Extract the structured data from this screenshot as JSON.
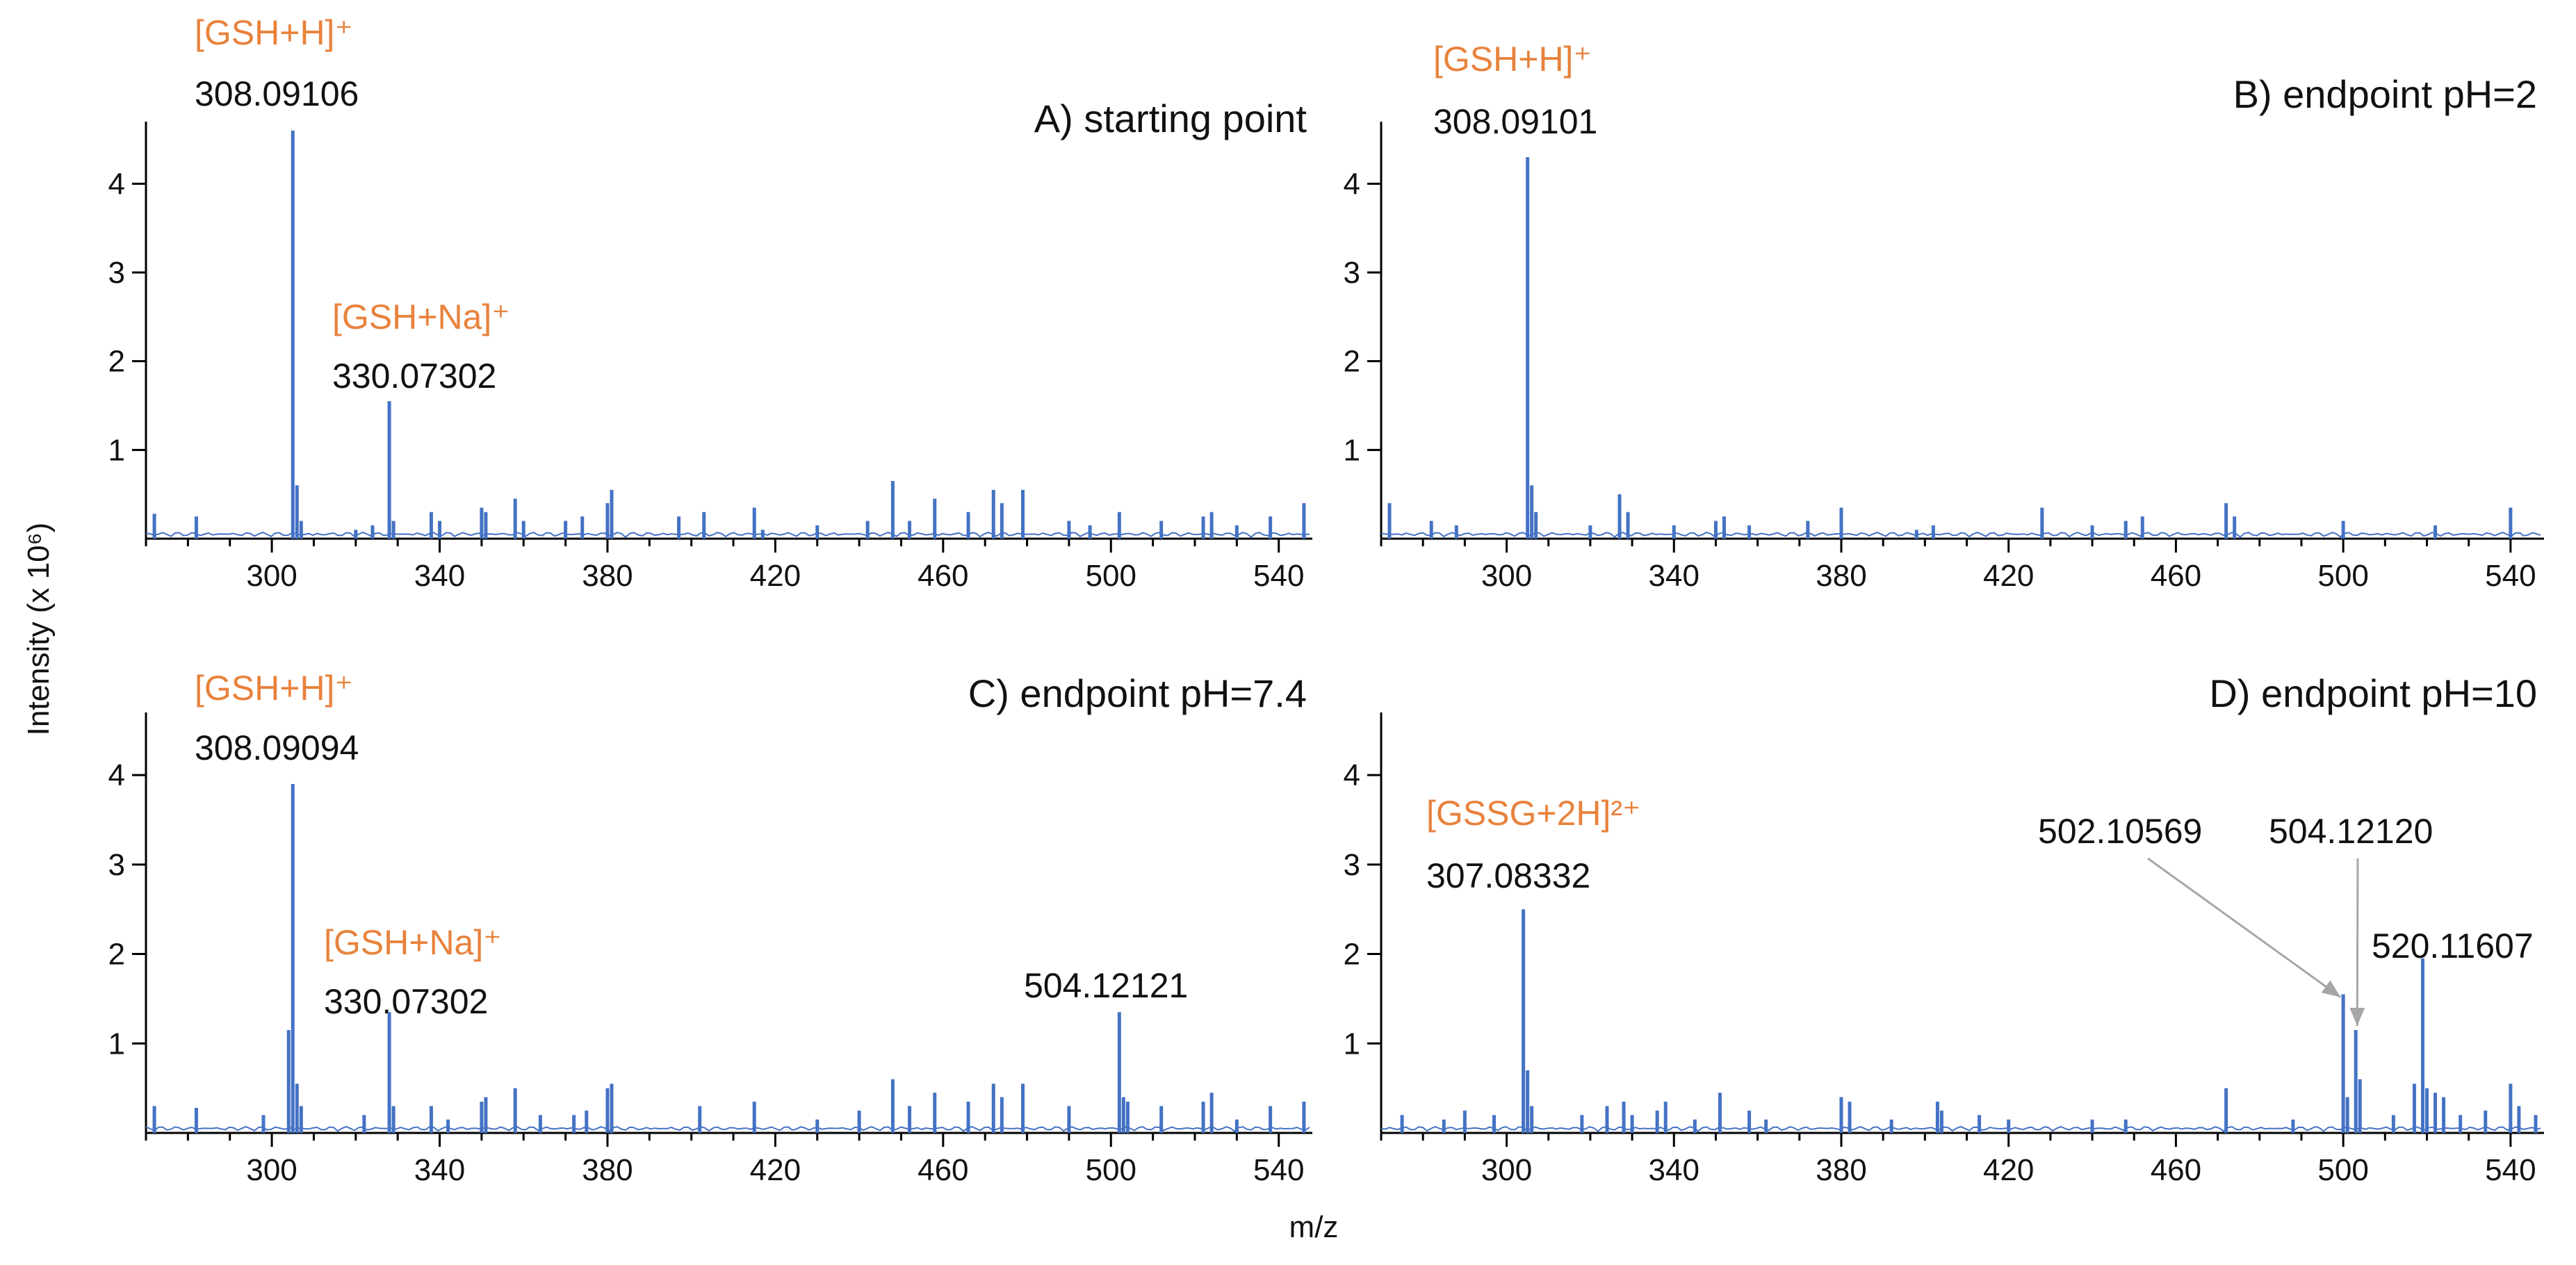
{
  "figure": {
    "ylabel": "Intensity (x 10⁶)",
    "xlabel": "m/z",
    "colors": {
      "spectrum": "#4472C4",
      "ion_label": "#E8823C",
      "axis": "#000000",
      "arrow": "#A6A6A6"
    }
  },
  "chart_data": [
    {
      "type": "line",
      "title": "A) starting point",
      "xlim": [
        270,
        548
      ],
      "ylim": [
        0,
        4.7
      ],
      "xticks": [
        300,
        340,
        380,
        420,
        460,
        500,
        540
      ],
      "yticks": [
        1,
        2,
        3,
        4
      ],
      "series": [
        {
          "peaks": [
            [
              272,
              0.28
            ],
            [
              282,
              0.25
            ],
            [
              305,
              4.6
            ],
            [
              306,
              0.6
            ],
            [
              307,
              0.2
            ],
            [
              320,
              0.1
            ],
            [
              324,
              0.15
            ],
            [
              328,
              1.55
            ],
            [
              329,
              0.2
            ],
            [
              338,
              0.3
            ],
            [
              340,
              0.2
            ],
            [
              350,
              0.35
            ],
            [
              351,
              0.3
            ],
            [
              358,
              0.45
            ],
            [
              360,
              0.2
            ],
            [
              370,
              0.2
            ],
            [
              374,
              0.25
            ],
            [
              380,
              0.4
            ],
            [
              381,
              0.55
            ],
            [
              397,
              0.25
            ],
            [
              403,
              0.3
            ],
            [
              415,
              0.35
            ],
            [
              417,
              0.1
            ],
            [
              430,
              0.15
            ],
            [
              442,
              0.2
            ],
            [
              448,
              0.65
            ],
            [
              452,
              0.2
            ],
            [
              458,
              0.45
            ],
            [
              466,
              0.3
            ],
            [
              472,
              0.55
            ],
            [
              474,
              0.4
            ],
            [
              479,
              0.55
            ],
            [
              490,
              0.2
            ],
            [
              495,
              0.15
            ],
            [
              502,
              0.3
            ],
            [
              512,
              0.2
            ],
            [
              522,
              0.25
            ],
            [
              524,
              0.3
            ],
            [
              530,
              0.15
            ],
            [
              538,
              0.25
            ],
            [
              546,
              0.4
            ]
          ]
        }
      ],
      "annotations": [
        {
          "ion": "[GSH+H]⁺",
          "mz": "308.09106",
          "x": 305
        },
        {
          "ion": "[GSH+Na]⁺",
          "mz": "330.07302",
          "x": 328
        }
      ]
    },
    {
      "type": "line",
      "title": "B) endpoint pH=2",
      "xlim": [
        270,
        548
      ],
      "ylim": [
        0,
        4.7
      ],
      "xticks": [
        300,
        340,
        380,
        420,
        460,
        500,
        540
      ],
      "yticks": [
        1,
        2,
        3,
        4
      ],
      "series": [
        {
          "peaks": [
            [
              272,
              0.4
            ],
            [
              282,
              0.2
            ],
            [
              288,
              0.15
            ],
            [
              305,
              4.3
            ],
            [
              306,
              0.6
            ],
            [
              307,
              0.3
            ],
            [
              320,
              0.15
            ],
            [
              327,
              0.5
            ],
            [
              329,
              0.3
            ],
            [
              340,
              0.15
            ],
            [
              350,
              0.2
            ],
            [
              352,
              0.25
            ],
            [
              358,
              0.15
            ],
            [
              372,
              0.2
            ],
            [
              380,
              0.35
            ],
            [
              398,
              0.1
            ],
            [
              402,
              0.15
            ],
            [
              428,
              0.35
            ],
            [
              440,
              0.15
            ],
            [
              448,
              0.2
            ],
            [
              452,
              0.25
            ],
            [
              472,
              0.4
            ],
            [
              474,
              0.25
            ],
            [
              500,
              0.2
            ],
            [
              522,
              0.15
            ],
            [
              540,
              0.35
            ]
          ]
        }
      ],
      "annotations": [
        {
          "ion": "[GSH+H]⁺",
          "mz": "308.09101",
          "x": 305
        }
      ]
    },
    {
      "type": "line",
      "title": "C) endpoint pH=7.4",
      "xlim": [
        270,
        548
      ],
      "ylim": [
        0,
        4.7
      ],
      "xticks": [
        300,
        340,
        380,
        420,
        460,
        500,
        540
      ],
      "yticks": [
        1,
        2,
        3,
        4
      ],
      "series": [
        {
          "peaks": [
            [
              272,
              0.3
            ],
            [
              282,
              0.28
            ],
            [
              298,
              0.2
            ],
            [
              304,
              1.15
            ],
            [
              305,
              3.9
            ],
            [
              306,
              0.55
            ],
            [
              307,
              0.3
            ],
            [
              322,
              0.2
            ],
            [
              328,
              1.35
            ],
            [
              329,
              0.3
            ],
            [
              338,
              0.3
            ],
            [
              342,
              0.15
            ],
            [
              350,
              0.35
            ],
            [
              351,
              0.4
            ],
            [
              358,
              0.5
            ],
            [
              364,
              0.2
            ],
            [
              372,
              0.2
            ],
            [
              375,
              0.25
            ],
            [
              380,
              0.5
            ],
            [
              381,
              0.55
            ],
            [
              402,
              0.3
            ],
            [
              415,
              0.35
            ],
            [
              430,
              0.15
            ],
            [
              440,
              0.25
            ],
            [
              448,
              0.6
            ],
            [
              452,
              0.3
            ],
            [
              458,
              0.45
            ],
            [
              466,
              0.35
            ],
            [
              472,
              0.55
            ],
            [
              474,
              0.4
            ],
            [
              479,
              0.55
            ],
            [
              490,
              0.3
            ],
            [
              502,
              1.35
            ],
            [
              503,
              0.4
            ],
            [
              504,
              0.35
            ],
            [
              512,
              0.3
            ],
            [
              522,
              0.35
            ],
            [
              524,
              0.45
            ],
            [
              530,
              0.15
            ],
            [
              538,
              0.3
            ],
            [
              546,
              0.35
            ]
          ]
        }
      ],
      "annotations": [
        {
          "ion": "[GSH+H]⁺",
          "mz": "308.09094",
          "x": 305
        },
        {
          "ion": "[GSH+Na]⁺",
          "mz": "330.07302",
          "x": 328
        },
        {
          "ion": "",
          "mz": "504.12121",
          "x": 502
        }
      ]
    },
    {
      "type": "line",
      "title": "D) endpoint pH=10",
      "xlim": [
        270,
        548
      ],
      "ylim": [
        0,
        4.7
      ],
      "xticks": [
        300,
        340,
        380,
        420,
        460,
        500,
        540
      ],
      "yticks": [
        1,
        2,
        3,
        4
      ],
      "series": [
        {
          "peaks": [
            [
              275,
              0.2
            ],
            [
              285,
              0.15
            ],
            [
              290,
              0.25
            ],
            [
              297,
              0.2
            ],
            [
              304,
              2.5
            ],
            [
              305,
              0.7
            ],
            [
              306,
              0.3
            ],
            [
              318,
              0.2
            ],
            [
              324,
              0.3
            ],
            [
              328,
              0.35
            ],
            [
              330,
              0.2
            ],
            [
              336,
              0.25
            ],
            [
              338,
              0.35
            ],
            [
              345,
              0.15
            ],
            [
              351,
              0.45
            ],
            [
              358,
              0.25
            ],
            [
              362,
              0.15
            ],
            [
              380,
              0.4
            ],
            [
              382,
              0.35
            ],
            [
              392,
              0.15
            ],
            [
              403,
              0.35
            ],
            [
              404,
              0.25
            ],
            [
              413,
              0.2
            ],
            [
              420,
              0.15
            ],
            [
              440,
              0.15
            ],
            [
              448,
              0.15
            ],
            [
              472,
              0.5
            ],
            [
              488,
              0.15
            ],
            [
              500,
              1.55
            ],
            [
              501,
              0.4
            ],
            [
              503,
              1.15
            ],
            [
              504,
              0.6
            ],
            [
              512,
              0.2
            ],
            [
              517,
              0.55
            ],
            [
              519,
              1.95
            ],
            [
              520,
              0.5
            ],
            [
              522,
              0.45
            ],
            [
              524,
              0.4
            ],
            [
              528,
              0.2
            ],
            [
              534,
              0.25
            ],
            [
              540,
              0.55
            ],
            [
              542,
              0.3
            ],
            [
              546,
              0.2
            ]
          ]
        }
      ],
      "annotations": [
        {
          "ion": "[GSSG+2H]²⁺",
          "mz": "307.08332",
          "x": 304
        },
        {
          "ion": "",
          "mz": "502.10569",
          "x": 500
        },
        {
          "ion": "",
          "mz": "504.12120",
          "x": 503
        },
        {
          "ion": "",
          "mz": "520.11607",
          "x": 519
        }
      ]
    }
  ]
}
